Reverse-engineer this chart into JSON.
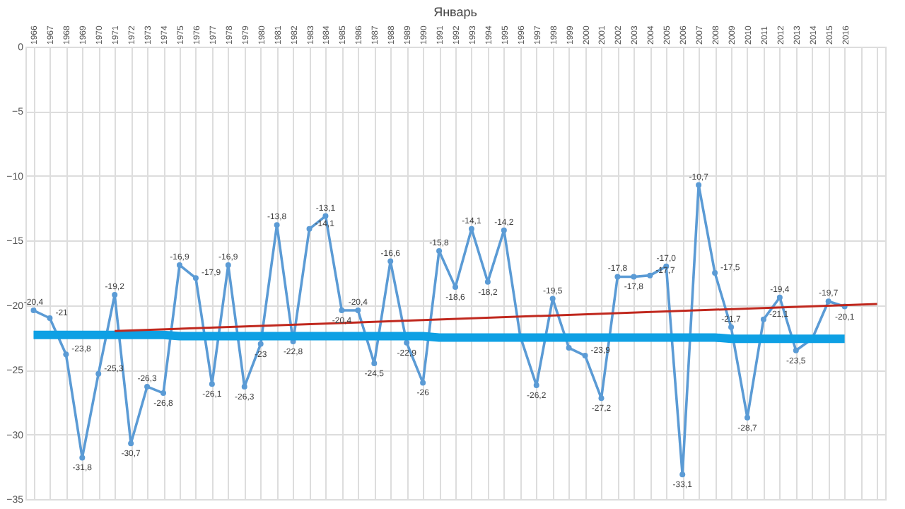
{
  "chart_data": {
    "type": "line",
    "title": "Январь",
    "categories": [
      "1966",
      "1967",
      "1968",
      "1969",
      "1970",
      "1971",
      "1972",
      "1973",
      "1974",
      "1975",
      "1976",
      "1977",
      "1978",
      "1979",
      "1980",
      "1981",
      "1982",
      "1983",
      "1984",
      "1985",
      "1986",
      "1987",
      "1988",
      "1989",
      "1990",
      "1991",
      "1992",
      "1993",
      "1994",
      "1995",
      "1996",
      "1997",
      "1998",
      "1999",
      "2000",
      "2001",
      "2002",
      "2003",
      "2004",
      "2005",
      "2006",
      "2007",
      "2008",
      "2009",
      "2010",
      "2011",
      "2012",
      "2013",
      "2014",
      "2015",
      "2016",
      null,
      null
    ],
    "series": [
      {
        "color": "#5b9bd5",
        "marker": "circle",
        "values": [
          -20.4,
          -21,
          -23.8,
          -31.8,
          -25.3,
          -19.2,
          -30.7,
          -26.3,
          -26.8,
          -16.9,
          -17.9,
          -26.1,
          -16.9,
          -26.3,
          -23,
          -13.8,
          -22.8,
          -14.1,
          -13.1,
          -20.4,
          -20.4,
          -24.5,
          -16.6,
          -22.9,
          -26,
          -15.8,
          -18.6,
          -14.1,
          -18.2,
          -14.2,
          -22.4,
          -26.2,
          -19.5,
          -23.3,
          -23.9,
          -27.2,
          -17.8,
          -17.8,
          -17.7,
          -17.0,
          -33.1,
          -10.7,
          -17.5,
          -21.7,
          -28.7,
          -21.1,
          -19.4,
          -23.5,
          -22.6,
          -19.7,
          -20.1,
          null,
          null
        ],
        "value_labels": [
          "-20,4",
          "-21",
          "-23,8",
          "-31,8",
          "-25,3",
          "-19,2",
          "-30,7",
          "-26,3",
          "-26,8",
          "-16,9",
          "-17,9",
          "-26,1",
          "-16,9",
          "-26,3",
          "-23",
          "-13,8",
          "-22,8",
          "-14,1",
          "-13,1",
          "-20,4",
          "-20,4",
          "-24,5",
          "-16,6",
          "-22,9",
          "-26",
          "-15,8",
          "-18,6",
          "-14,1",
          "-18,2",
          "-14,2",
          null,
          "-26,2",
          "-19,5",
          null,
          "-23,9",
          "-27,2",
          "-17,8",
          "-17,8",
          "-17,7",
          "-17,0",
          "-33,1",
          "-10,7",
          "-17,5",
          "-21,7",
          "-28,7",
          "-21,1",
          "-19,4",
          "-23,5",
          null,
          "-19,7",
          "-20,1",
          null,
          null
        ]
      },
      {
        "color": "#0ea0e4",
        "marker": "none",
        "values": [
          -22.3,
          -22.3,
          -22.3,
          -22.3,
          -22.3,
          -22.3,
          -22.3,
          -22.3,
          -22.3,
          -22.4,
          -22.4,
          -22.4,
          -22.4,
          -22.4,
          -22.4,
          -22.4,
          -22.4,
          -22.4,
          -22.4,
          -22.4,
          -22.4,
          -22.4,
          -22.4,
          -22.4,
          -22.4,
          -22.5,
          -22.5,
          -22.5,
          -22.5,
          -22.5,
          -22.5,
          -22.5,
          -22.5,
          -22.5,
          -22.5,
          -22.5,
          -22.5,
          -22.5,
          -22.5,
          -22.5,
          -22.5,
          -22.5,
          -22.5,
          -22.6,
          -22.6,
          -22.6,
          -22.6,
          -22.6,
          -22.6,
          -22.6,
          -22.6,
          null,
          null
        ]
      },
      {
        "color": "#c0281e",
        "marker": "none",
        "values": [
          null,
          null,
          null,
          null,
          null,
          -22.0,
          null,
          null,
          null,
          null,
          null,
          null,
          null,
          null,
          null,
          null,
          null,
          null,
          null,
          null,
          null,
          null,
          null,
          null,
          null,
          null,
          null,
          null,
          null,
          null,
          null,
          null,
          null,
          null,
          null,
          null,
          null,
          null,
          null,
          null,
          null,
          null,
          null,
          null,
          null,
          null,
          null,
          null,
          null,
          null,
          null,
          null,
          -19.9
        ]
      }
    ],
    "ylim": [
      -35,
      0
    ],
    "yticks": [
      -35,
      -30,
      -25,
      -20,
      -15,
      -10,
      -5,
      0
    ],
    "grid": true
  }
}
